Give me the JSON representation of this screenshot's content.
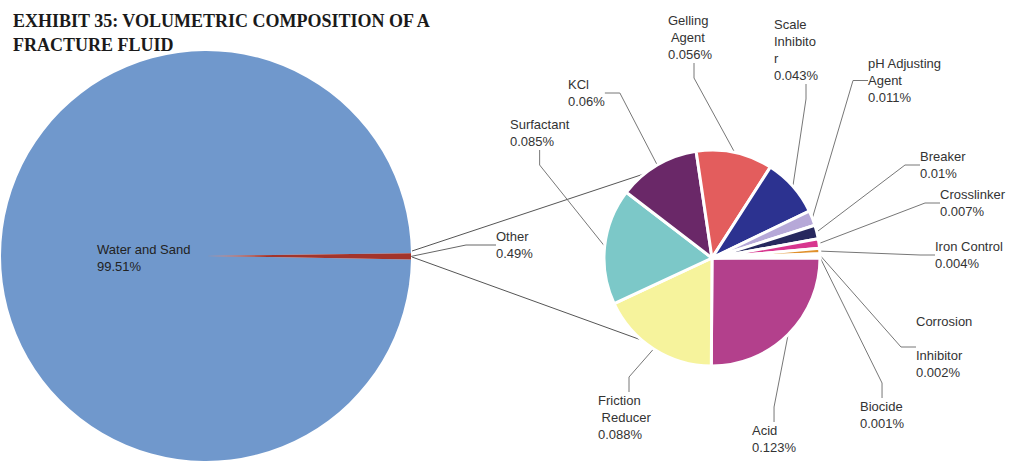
{
  "chart_data": [
    {
      "type": "pie",
      "title": "EXHIBIT 35: VOLUMETRIC COMPOSITION OF A FRACTURE FLUID",
      "categories": [
        "Water and Sand",
        "Other"
      ],
      "values": [
        99.51,
        0.49
      ],
      "value_labels": [
        "99.51%",
        "0.49%"
      ],
      "colors": [
        "#7098cc",
        "#a3342b"
      ],
      "data_labels": true
    },
    {
      "type": "pie",
      "categories": [
        "Acid",
        "Friction Reducer",
        "Surfactant",
        "KCl",
        "Gelling Agent",
        "Scale Inhibitor",
        "pH Adjusting Agent",
        "Breaker",
        "Crosslinker",
        "Iron Control",
        "Corrosion Inhibitor",
        "Biocide"
      ],
      "values": [
        0.123,
        0.088,
        0.085,
        0.06,
        0.056,
        0.043,
        0.011,
        0.01,
        0.007,
        0.004,
        0.002,
        0.001
      ],
      "value_labels": [
        "0.123%",
        "0.088%",
        "0.085%",
        "0.06%",
        "0.056%",
        "0.043%",
        "0.011%",
        "0.01%",
        "0.007%",
        "0.004%",
        "0.002%",
        "0.001%"
      ],
      "colors": [
        "#b3408c",
        "#f6f39c",
        "#7cc8c8",
        "#6a2868",
        "#e35d5d",
        "#2c3290",
        "#b6a8d8",
        "#27285e",
        "#d8368f",
        "#e0902c",
        "#e6d64a",
        "#4f8d3c"
      ],
      "data_labels": true
    }
  ]
}
